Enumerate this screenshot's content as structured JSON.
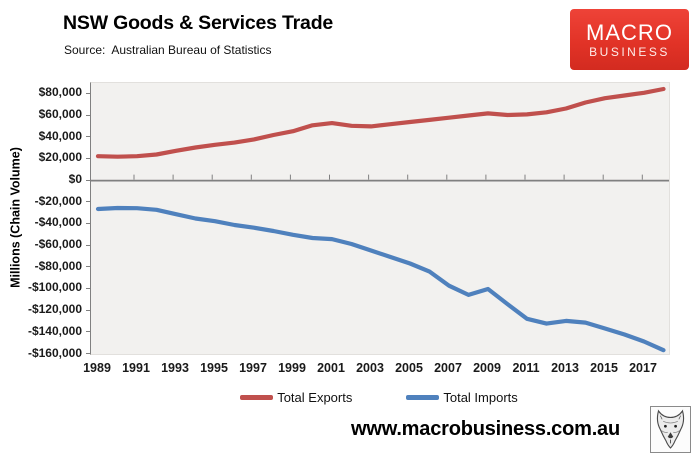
{
  "header": {
    "title": "NSW Goods & Services Trade",
    "source": "Source:  Australian Bureau of Statistics"
  },
  "logo": {
    "line1": "MACRO",
    "line2": "BUSINESS",
    "background_color": "#e23327"
  },
  "footer": {
    "website": "www.macrobusiness.com.au",
    "logo_icon": "wolf-icon"
  },
  "chart_data": {
    "type": "line",
    "title": "NSW Goods & Services Trade",
    "subtitle": "Source: Australian Bureau of Statistics",
    "ylabel": "Millions (Chain Volume)",
    "xlabel": "",
    "grid": false,
    "legend_position": "bottom",
    "plot_background": "#f2f1ef",
    "zero_line_color": "#808080",
    "ylim": [
      -160000,
      90000
    ],
    "x": [
      1989,
      1990,
      1991,
      1992,
      1993,
      1994,
      1995,
      1996,
      1997,
      1998,
      1999,
      2000,
      2001,
      2002,
      2003,
      2004,
      2005,
      2006,
      2007,
      2008,
      2009,
      2010,
      2011,
      2012,
      2013,
      2014,
      2015,
      2016,
      2017,
      2018
    ],
    "xtick_labels": [
      "1989",
      "1991",
      "1993",
      "1995",
      "1997",
      "1999",
      "2001",
      "2003",
      "2005",
      "2007",
      "2009",
      "2011",
      "2013",
      "2015",
      "2017"
    ],
    "yticks": [
      {
        "value": 80000,
        "label": "$80,000"
      },
      {
        "value": 60000,
        "label": "$60,000"
      },
      {
        "value": 40000,
        "label": "$40,000"
      },
      {
        "value": 20000,
        "label": "$20,000"
      },
      {
        "value": 0,
        "label": "$0"
      },
      {
        "value": -20000,
        "label": "-$20,000"
      },
      {
        "value": -40000,
        "label": "-$40,000"
      },
      {
        "value": -60000,
        "label": "-$60,000"
      },
      {
        "value": -80000,
        "label": "-$80,000"
      },
      {
        "value": -100000,
        "label": "-$100,000"
      },
      {
        "value": -120000,
        "label": "-$120,000"
      },
      {
        "value": -140000,
        "label": "-$140,000"
      },
      {
        "value": -160000,
        "label": "-$160,000"
      }
    ],
    "series": [
      {
        "name": "Total Exports",
        "color": "#C0504D",
        "values": [
          22500,
          22000,
          22500,
          24000,
          27500,
          30500,
          33000,
          35000,
          38000,
          42000,
          45500,
          51000,
          53000,
          50500,
          50000,
          52000,
          54000,
          56000,
          58000,
          60000,
          62000,
          60500,
          61000,
          63000,
          66500,
          72000,
          76000,
          78500,
          81000,
          84500
        ]
      },
      {
        "name": "Total Imports",
        "color": "#4F81BD",
        "values": [
          -26200,
          -25300,
          -25500,
          -27000,
          -31000,
          -35000,
          -37500,
          -41000,
          -43500,
          -46500,
          -50000,
          -53000,
          -54000,
          -58500,
          -64500,
          -70500,
          -76500,
          -84000,
          -97000,
          -105500,
          -100000,
          -114000,
          -127500,
          -132000,
          -129500,
          -131000,
          -136500,
          -142000,
          -148500,
          -156500
        ]
      }
    ]
  }
}
